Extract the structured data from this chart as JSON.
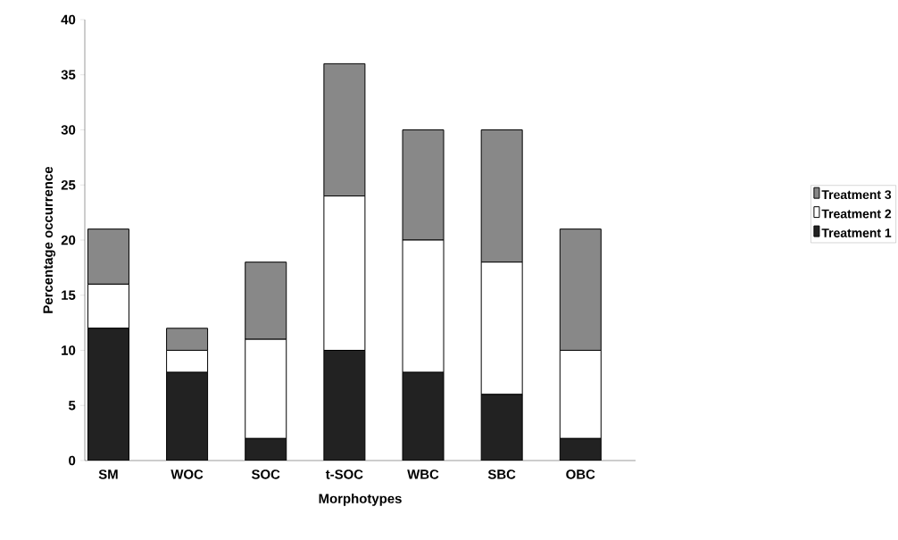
{
  "chart_data": {
    "type": "bar",
    "stacked": true,
    "xlabel": "Morphotypes",
    "ylabel": "Percentage occurrence",
    "categories": [
      "SM",
      "WOC",
      "SOC",
      "t-SOC",
      "WBC",
      "SBC",
      "OBC"
    ],
    "series": [
      {
        "name": "Treatment 1",
        "color": "#222222",
        "values": [
          12,
          8,
          2,
          10,
          8,
          6,
          2
        ]
      },
      {
        "name": "Treatment 2",
        "color": "#ffffff",
        "values": [
          4,
          2,
          9,
          14,
          12,
          12,
          8
        ]
      },
      {
        "name": "Treatment 3",
        "color": "#888888",
        "values": [
          5,
          2,
          7,
          12,
          10,
          12,
          11
        ]
      }
    ],
    "ylim": [
      0,
      40
    ],
    "yticks": [
      0,
      5,
      10,
      15,
      20,
      25,
      30,
      35,
      40
    ],
    "grid": false,
    "legend": "right"
  }
}
